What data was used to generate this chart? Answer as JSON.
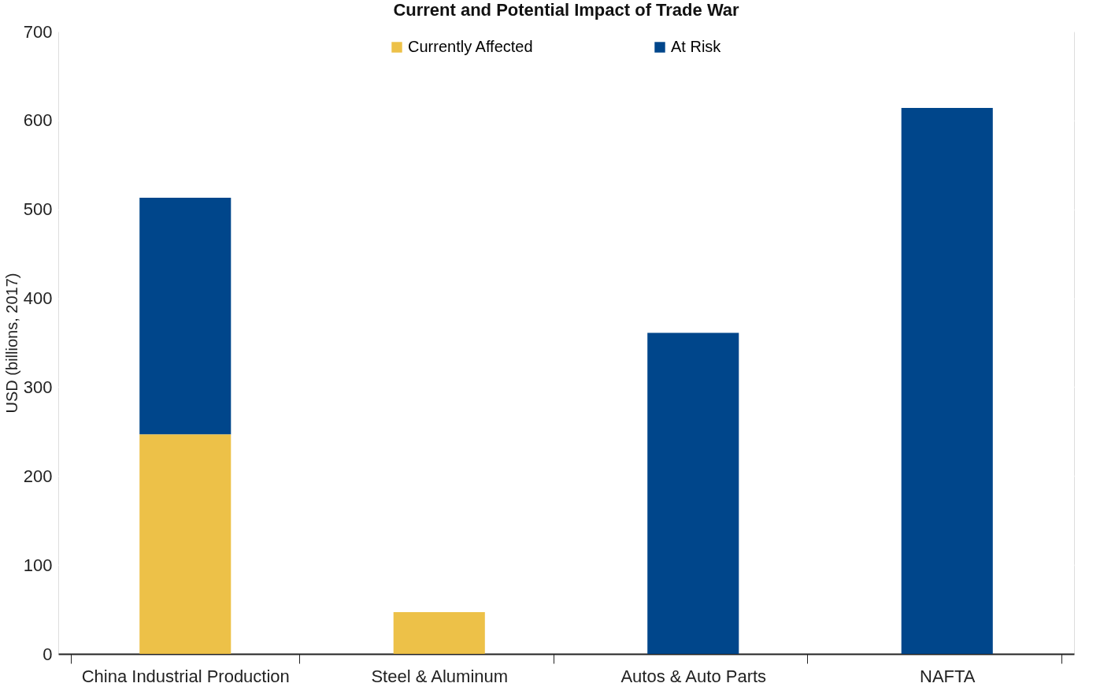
{
  "chart_data": {
    "type": "bar",
    "title": "Current and Potential Impact of Trade War",
    "ylabel": "USD (billions, 2017)",
    "stacked": true,
    "categories": [
      "China Industrial Production",
      "Steel & Aluminum",
      "Autos & Auto Parts",
      "NAFTA"
    ],
    "series": [
      {
        "name": "Currently Affected",
        "color": "#edc148",
        "values": [
          247,
          47,
          null,
          null
        ]
      },
      {
        "name": "At Risk",
        "color": "#00468b",
        "values": [
          266,
          null,
          361,
          614
        ]
      }
    ],
    "ylim": [
      0,
      700
    ],
    "yticks": [
      0,
      100,
      200,
      300,
      400,
      500,
      600,
      700
    ],
    "grid": "y",
    "legend": "top"
  }
}
